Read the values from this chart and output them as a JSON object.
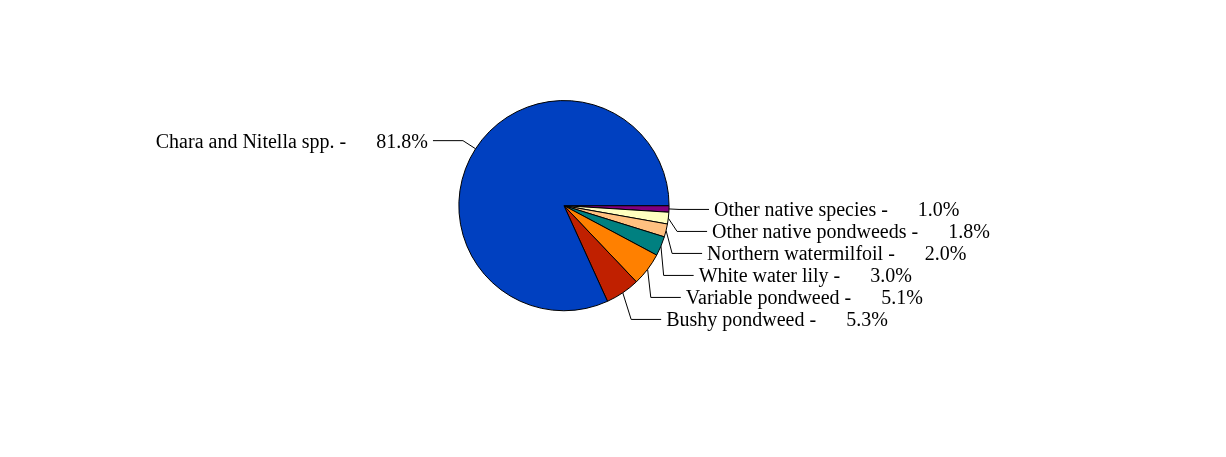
{
  "chart_data": {
    "type": "pie",
    "categories": [
      "Other native species -",
      "Other native pondweeds -",
      "Northern watermilfoil -",
      "White water lily -",
      "Variable pondweed -",
      "Bushy pondweed -",
      "Chara and Nitella spp. -"
    ],
    "values": [
      1.0,
      1.8,
      2.0,
      3.0,
      5.1,
      5.3,
      81.8
    ],
    "value_labels": [
      "1.0%",
      "1.8%",
      "2.0%",
      "3.0%",
      "5.1%",
      "5.3%",
      "81.8%"
    ],
    "colors": [
      "#800080",
      "#ffffc0",
      "#ffc080",
      "#008080",
      "#ff8000",
      "#c02000",
      "#0040c0"
    ],
    "legend": false
  }
}
